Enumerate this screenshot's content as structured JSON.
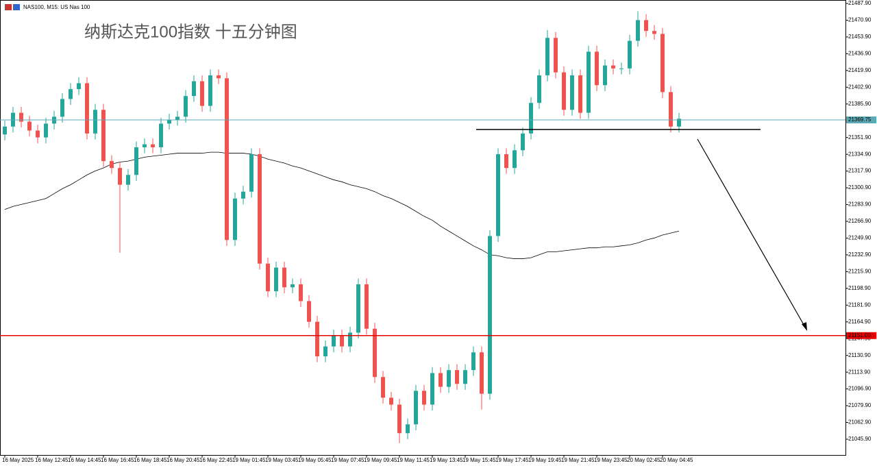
{
  "chart_data": {
    "type": "candlestick",
    "header": "NAS100, M15: US Nas 100",
    "title": "纳斯达克100指数 十五分钟图",
    "categories": [
      "16 May 2025",
      null,
      null,
      null,
      "16 May 12:45",
      null,
      null,
      null,
      "16 May 14:45",
      null,
      null,
      null,
      "16 May 16:45",
      null,
      null,
      null,
      "16 May 18:45",
      null,
      null,
      null,
      "16 May 20:45",
      null,
      null,
      null,
      "16 May 22:45",
      null,
      null,
      null,
      "19 May 01:45",
      null,
      null,
      null,
      "19 May 03:45",
      null,
      null,
      null,
      "19 May 05:45",
      null,
      null,
      null,
      "19 May 07:45",
      null,
      null,
      null,
      "19 May 09:45",
      null,
      null,
      null,
      "19 May 11:45",
      null,
      null,
      null,
      "19 May 13:45",
      null,
      null,
      null,
      "19 May 15:45",
      null,
      null,
      null,
      "19 May 17:45",
      null,
      null,
      null,
      "19 May 19:45",
      null,
      null,
      null,
      "19 May 21:45",
      null,
      null,
      null,
      "19 May 23:45",
      null,
      null,
      null,
      "20 May 02:45",
      null,
      null,
      null,
      "20 May 04:45",
      null,
      null
    ],
    "open": [
      21355,
      21363,
      21377,
      21368,
      21359,
      21352,
      21366,
      21373,
      21391,
      21401,
      21407,
      21356,
      21380,
      21328,
      21321,
      21304,
      21314,
      21342,
      21345,
      21342,
      21366,
      21370,
      21373,
      21394,
      21409,
      21384,
      21415,
      21412,
      21248,
      21290,
      21297,
      21335,
      21224,
      21196,
      21220,
      21200,
      21203,
      21186,
      21165,
      21130,
      21140,
      21151,
      21140,
      21154,
      21203,
      21158,
      21109,
      21088,
      21081,
      21052,
      21061,
      21095,
      21081,
      21113,
      21099,
      21116,
      21102,
      21116,
      21134,
      21092,
      21252,
      21335,
      21321,
      21339,
      21356,
      21387,
      21415,
      21453,
      21418,
      21380,
      21415,
      21377,
      21439,
      21405,
      21425,
      21422,
      21422,
      21450,
      21471,
      21460,
      21457,
      21398,
      21363
    ],
    "high": [
      21369,
      21383,
      21383,
      21374,
      21365,
      21372,
      21379,
      21397,
      21407,
      21413,
      21413,
      21386,
      21386,
      21334,
      21327,
      21320,
      21348,
      21351,
      21351,
      21372,
      21376,
      21379,
      21400,
      21415,
      21415,
      21421,
      21421,
      21418,
      21296,
      21303,
      21341,
      21341,
      21230,
      21226,
      21226,
      21209,
      21209,
      21192,
      21171,
      21146,
      21157,
      21157,
      21160,
      21209,
      21209,
      21164,
      21115,
      21094,
      21087,
      21067,
      21101,
      21101,
      21119,
      21119,
      21122,
      21122,
      21122,
      21140,
      21140,
      21258,
      21341,
      21341,
      21345,
      21362,
      21393,
      21421,
      21461,
      21459,
      21424,
      21421,
      21421,
      21445,
      21445,
      21431,
      21431,
      21428,
      21456,
      21480,
      21477,
      21466,
      21463,
      21404,
      21377
    ],
    "low": [
      21349,
      21357,
      21362,
      21353,
      21346,
      21346,
      21360,
      21367,
      21385,
      21395,
      21350,
      21350,
      21322,
      21315,
      21235,
      21298,
      21308,
      21336,
      21336,
      21336,
      21360,
      21364,
      21367,
      21388,
      21378,
      21378,
      21406,
      21242,
      21242,
      21284,
      21291,
      21218,
      21190,
      21190,
      21194,
      21194,
      21180,
      21159,
      21124,
      21124,
      21134,
      21134,
      21134,
      21148,
      21152,
      21103,
      21082,
      21075,
      21042,
      21046,
      21055,
      21075,
      21075,
      21093,
      21093,
      21096,
      21096,
      21110,
      21076,
      21086,
      21246,
      21315,
      21315,
      21333,
      21350,
      21381,
      21409,
      21412,
      21374,
      21374,
      21371,
      21371,
      21399,
      21399,
      21416,
      21416,
      21416,
      21444,
      21454,
      21451,
      21392,
      21357,
      21357
    ],
    "close": [
      21363,
      21377,
      21368,
      21359,
      21352,
      21366,
      21373,
      21391,
      21401,
      21407,
      21356,
      21380,
      21328,
      21321,
      21304,
      21314,
      21342,
      21345,
      21342,
      21366,
      21370,
      21373,
      21394,
      21409,
      21384,
      21415,
      21412,
      21248,
      21290,
      21297,
      21335,
      21224,
      21196,
      21220,
      21200,
      21203,
      21186,
      21165,
      21130,
      21140,
      21151,
      21140,
      21154,
      21203,
      21158,
      21109,
      21088,
      21081,
      21052,
      21061,
      21095,
      21081,
      21113,
      21099,
      21116,
      21102,
      21116,
      21134,
      21092,
      21252,
      21335,
      21321,
      21339,
      21356,
      21387,
      21415,
      21453,
      21418,
      21380,
      21415,
      21377,
      21439,
      21405,
      21425,
      21422,
      21422,
      21450,
      21471,
      21460,
      21457,
      21398,
      21363,
      21371
    ],
    "up_color": "#26a69a",
    "down_color": "#ef5350",
    "ma": {
      "color": "#000000",
      "values": [
        21279,
        21282,
        21284,
        21286,
        21288,
        21290,
        21295,
        21300,
        21304,
        21309,
        21314,
        21318,
        21321,
        21325,
        21327,
        21328,
        21330,
        21332,
        21333,
        21334,
        21335,
        21336,
        21336,
        21336,
        21336,
        21337,
        21337,
        21336,
        21336,
        21336,
        21335,
        21333,
        21330,
        21328,
        21326,
        21323,
        21321,
        21318,
        21315,
        21312,
        21309,
        21307,
        21304,
        21302,
        21300,
        21297,
        21293,
        21290,
        21286,
        21282,
        21277,
        21272,
        21268,
        21262,
        21257,
        21252,
        21247,
        21242,
        21238,
        21233,
        21232,
        21230,
        21229,
        21229,
        21230,
        21233,
        21236,
        21236,
        21237,
        21238,
        21239,
        21240,
        21240,
        21241,
        21241,
        21242,
        21243,
        21245,
        21248,
        21250,
        21253,
        21255,
        21257
      ]
    },
    "levels": [
      {
        "value": 21369.75,
        "label": "21369.75",
        "color": "#5aa9b3"
      },
      {
        "value": 21151,
        "label": "21151.00",
        "color": "#e60000"
      }
    ],
    "support_line": 21360,
    "ylim": [
      21029.9,
      21491.4
    ],
    "yticks": [
      {
        "value": 21487.9,
        "label": "21487.90"
      },
      {
        "value": 21470.9,
        "label": "21470.90"
      },
      {
        "value": 21453.9,
        "label": "21453.90"
      },
      {
        "value": 21436.9,
        "label": "21436.90"
      },
      {
        "value": 21419.9,
        "label": "21419.90"
      },
      {
        "value": 21402.9,
        "label": "21402.90"
      },
      {
        "value": 21385.9,
        "label": "21385.90"
      },
      {
        "value": 21368.9,
        "label": "21368.90"
      },
      {
        "value": 21351.9,
        "label": "21351.90"
      },
      {
        "value": 21334.9,
        "label": "21334.90"
      },
      {
        "value": 21317.9,
        "label": "21317.90"
      },
      {
        "value": 21300.9,
        "label": "21300.90"
      },
      {
        "value": 21283.9,
        "label": "21283.90"
      },
      {
        "value": 21266.9,
        "label": "21266.90"
      },
      {
        "value": 21249.9,
        "label": "21249.90"
      },
      {
        "value": 21232.9,
        "label": "21232.90"
      },
      {
        "value": 21215.9,
        "label": "21215.90"
      },
      {
        "value": 21198.9,
        "label": "21198.90"
      },
      {
        "value": 21181.9,
        "label": "21181.90"
      },
      {
        "value": 21164.9,
        "label": "21164.90"
      },
      {
        "value": 21147.9,
        "label": "21147.90"
      },
      {
        "value": 21130.9,
        "label": "21130.90"
      },
      {
        "value": 21113.9,
        "label": "21113.90"
      },
      {
        "value": 21096.9,
        "label": "21096.90"
      },
      {
        "value": 21079.9,
        "label": "21079.90"
      },
      {
        "value": 21062.9,
        "label": "21062.90"
      },
      {
        "value": 21045.9,
        "label": "21045.90"
      }
    ]
  }
}
